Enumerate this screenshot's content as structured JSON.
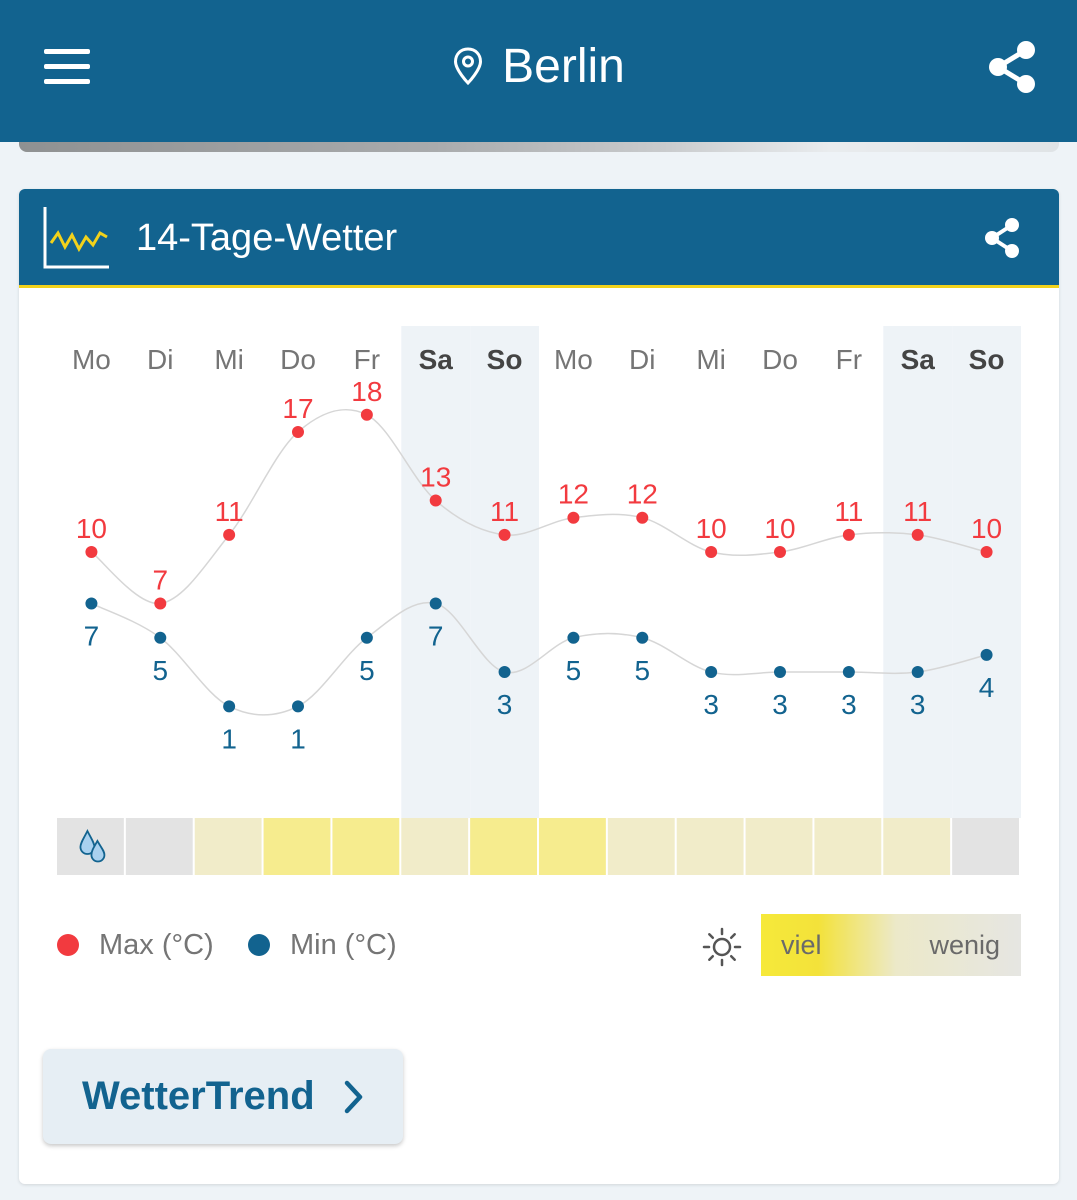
{
  "header": {
    "menu_icon": "hamburger-menu-icon",
    "location_icon": "location-pin-icon",
    "city": "Berlin",
    "share_icon": "share-icon"
  },
  "card": {
    "icon": "line-chart-icon",
    "title": "14-Tage-Wetter",
    "share_icon": "share-icon"
  },
  "chart_data": {
    "type": "line",
    "title": "",
    "x": [
      "Mo",
      "Di",
      "Mi",
      "Do",
      "Fr",
      "Sa",
      "So",
      "Mo",
      "Di",
      "Mi",
      "Do",
      "Fr",
      "Sa",
      "So"
    ],
    "weekend_indices": [
      5,
      6,
      12,
      13
    ],
    "series": [
      {
        "name": "Max (°C)",
        "color": "#f23a3f",
        "values": [
          10,
          7,
          11,
          17,
          18,
          13,
          11,
          12,
          12,
          10,
          10,
          11,
          11,
          10
        ]
      },
      {
        "name": "Min (°C)",
        "color": "#12638f",
        "values": [
          7,
          5,
          1,
          1,
          5,
          7,
          3,
          5,
          5,
          3,
          3,
          3,
          3,
          4
        ]
      }
    ],
    "ylim": [
      0,
      20
    ],
    "sunshine": {
      "levels": [
        "rain",
        "none",
        "low",
        "high",
        "high",
        "low",
        "high",
        "high",
        "low",
        "low",
        "low",
        "low",
        "low",
        "none"
      ],
      "rain_icon": "raindrops-icon",
      "colors": {
        "none": "#e3e3e3",
        "low": "#f1ecc9",
        "high": "#f6ec8e",
        "rain": "#e3e3e3"
      }
    }
  },
  "legend": {
    "max_label": "Max (°C)",
    "min_label": "Min (°C)",
    "sun_icon": "sun-icon",
    "scale_high": "viel",
    "scale_low": "wenig"
  },
  "trend_button": {
    "label": "WetterTrend",
    "chevron_icon": "chevron-right-icon"
  }
}
